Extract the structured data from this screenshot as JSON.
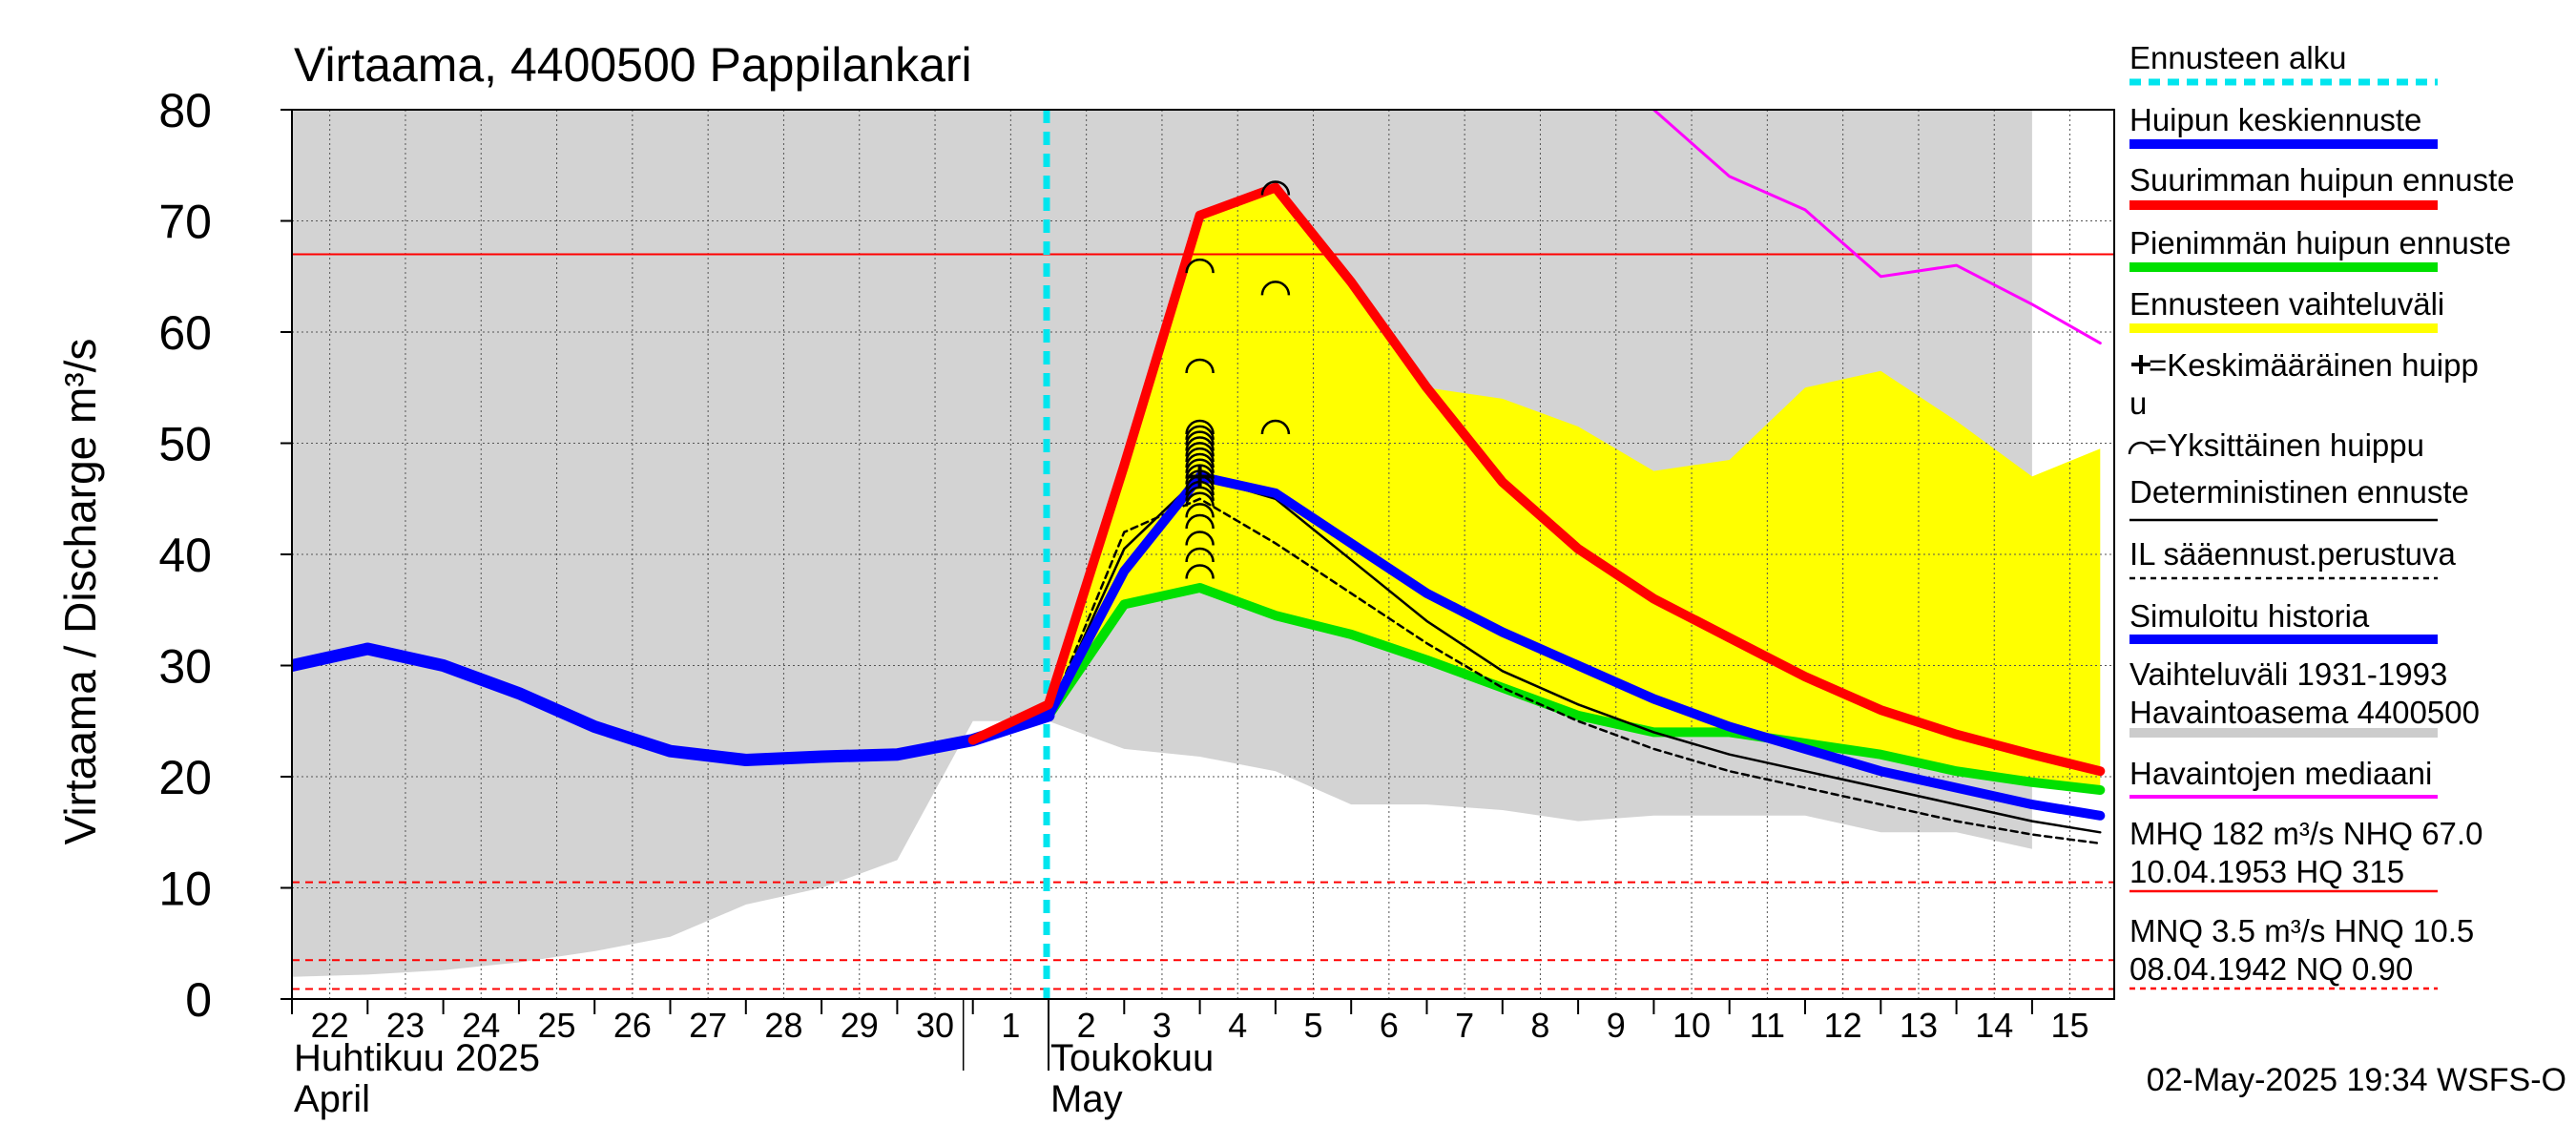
{
  "chart_data": {
    "type": "line",
    "title": "Virtaama, 4400500 Pappilankari",
    "ylabel": "Virtaama / Discharge    m³/s",
    "ylim": [
      0,
      80
    ],
    "y_ticks": [
      0,
      10,
      20,
      30,
      40,
      50,
      60,
      70,
      80
    ],
    "x_start": "2025-04-22",
    "x_end": "2025-05-15",
    "x_tick_labels": [
      {
        "date": "2025-04-22",
        "label": "22"
      },
      {
        "date": "2025-04-23",
        "label": "23"
      },
      {
        "date": "2025-04-24",
        "label": "24"
      },
      {
        "date": "2025-04-25",
        "label": "25"
      },
      {
        "date": "2025-04-26",
        "label": "26"
      },
      {
        "date": "2025-04-27",
        "label": "27"
      },
      {
        "date": "2025-04-28",
        "label": "28"
      },
      {
        "date": "2025-04-29",
        "label": "29"
      },
      {
        "date": "2025-04-30",
        "label": "30"
      },
      {
        "date": "2025-05-01",
        "label": "1"
      },
      {
        "date": "2025-05-02",
        "label": "2"
      },
      {
        "date": "2025-05-03",
        "label": "3"
      },
      {
        "date": "2025-05-04",
        "label": "4"
      },
      {
        "date": "2025-05-05",
        "label": "5"
      },
      {
        "date": "2025-05-06",
        "label": "6"
      },
      {
        "date": "2025-05-07",
        "label": "7"
      },
      {
        "date": "2025-05-08",
        "label": "8"
      },
      {
        "date": "2025-05-09",
        "label": "9"
      },
      {
        "date": "2025-05-10",
        "label": "10"
      },
      {
        "date": "2025-05-11",
        "label": "11"
      },
      {
        "date": "2025-05-12",
        "label": "12"
      },
      {
        "date": "2025-05-13",
        "label": "13"
      },
      {
        "date": "2025-05-14",
        "label": "14"
      },
      {
        "date": "2025-05-15",
        "label": "15"
      }
    ],
    "month_labels": [
      {
        "date": "2025-04-22",
        "fi": "Huhtikuu  2025",
        "en": "April"
      },
      {
        "date": "2025-05-02",
        "fi": "Toukokuu",
        "en": "May"
      }
    ],
    "forecast_start": "2025-05-02",
    "reference_lines": [
      {
        "name": "NHQ",
        "value": 67.0,
        "style": "solid",
        "color": "#ff0000"
      },
      {
        "name": "HNQ",
        "value": 10.5,
        "style": "dashed",
        "color": "#ff0000"
      },
      {
        "name": "MNQ",
        "value": 3.5,
        "style": "dashed",
        "color": "#ff0000"
      },
      {
        "name": "NQ",
        "value": 0.9,
        "style": "dashed",
        "color": "#ff0000"
      }
    ],
    "variation_band_1931_1993": {
      "x": [
        "2025-04-22",
        "2025-04-23",
        "2025-04-24",
        "2025-04-25",
        "2025-04-26",
        "2025-04-27",
        "2025-04-28",
        "2025-04-29",
        "2025-04-30",
        "2025-05-01",
        "2025-05-02",
        "2025-05-03",
        "2025-05-04",
        "2025-05-05",
        "2025-05-06",
        "2025-05-07",
        "2025-05-08",
        "2025-05-09",
        "2025-05-10",
        "2025-05-11",
        "2025-05-12",
        "2025-05-13",
        "2025-05-14",
        "2025-05-15"
      ],
      "upper": [
        80,
        80,
        80,
        80,
        80,
        80,
        80,
        80,
        80,
        80,
        80,
        80,
        80,
        80,
        80,
        80,
        80,
        80,
        80,
        80,
        80,
        80,
        80,
        80
      ],
      "lower": [
        2.0,
        2.2,
        2.6,
        3.3,
        4.3,
        5.6,
        8.5,
        10.0,
        12.5,
        25.0,
        25.0,
        22.5,
        21.8,
        20.5,
        17.5,
        17.5,
        17.0,
        16.0,
        16.5,
        16.5,
        16.5,
        15.0,
        15.0,
        13.5
      ]
    },
    "forecast_band": {
      "x": [
        "2025-05-01",
        "2025-05-02",
        "2025-05-03",
        "2025-05-04",
        "2025-05-05",
        "2025-05-06",
        "2025-05-07",
        "2025-05-08",
        "2025-05-09",
        "2025-05-10",
        "2025-05-11",
        "2025-05-12",
        "2025-05-13",
        "2025-05-14",
        "2025-05-15",
        "2025-05-15.9"
      ],
      "upper": [
        23.5,
        26.5,
        49,
        70.5,
        73,
        64.5,
        55,
        54,
        51.5,
        47.5,
        48.5,
        55,
        56.5,
        52,
        47,
        49.5
      ],
      "lower": [
        23.5,
        25.5,
        35.5,
        37.0,
        34.5,
        32.5,
        30.5,
        28,
        25.5,
        24,
        24,
        23,
        22,
        20.5,
        19.5,
        18.5
      ]
    },
    "series": [
      {
        "name": "Simuloitu historia",
        "color": "#0000ff",
        "x": [
          "2025-04-22",
          "2025-04-23",
          "2025-04-24",
          "2025-04-25",
          "2025-04-26",
          "2025-04-27",
          "2025-04-28",
          "2025-04-29",
          "2025-04-30",
          "2025-05-01",
          "2025-05-02"
        ],
        "y": [
          30.0,
          31.5,
          30.0,
          27.5,
          24.5,
          22.3,
          21.5,
          21.8,
          22.0,
          23.3,
          25.5
        ]
      },
      {
        "name": "Huipun keskiennuste",
        "color": "#0000ff",
        "x": [
          "2025-05-02",
          "2025-05-03",
          "2025-05-04",
          "2025-05-05",
          "2025-05-06",
          "2025-05-07",
          "2025-05-08",
          "2025-05-09",
          "2025-05-10",
          "2025-05-11",
          "2025-05-12",
          "2025-05-13",
          "2025-05-14",
          "2025-05-15",
          "2025-05-15.9"
        ],
        "y": [
          25.5,
          38.5,
          47.0,
          45.5,
          41.0,
          36.5,
          33.0,
          30.0,
          27.0,
          24.5,
          22.5,
          20.5,
          19.0,
          17.5,
          16.5
        ]
      },
      {
        "name": "Suurimman huipun ennuste",
        "color": "#ff0000",
        "x": [
          "2025-05-01",
          "2025-05-02",
          "2025-05-03",
          "2025-05-04",
          "2025-05-05",
          "2025-05-06",
          "2025-05-07",
          "2025-05-08",
          "2025-05-09",
          "2025-05-10",
          "2025-05-11",
          "2025-05-12",
          "2025-05-13",
          "2025-05-14",
          "2025-05-15",
          "2025-05-15.9"
        ],
        "y": [
          23.3,
          26.5,
          48.0,
          70.5,
          73.0,
          64.5,
          55.0,
          46.5,
          40.5,
          36.0,
          32.5,
          29.0,
          26.0,
          23.8,
          22.0,
          20.5
        ]
      },
      {
        "name": "Pienimmän huipun ennuste",
        "color": "#00e000",
        "x": [
          "2025-05-02",
          "2025-05-03",
          "2025-05-04",
          "2025-05-05",
          "2025-05-06",
          "2025-05-07",
          "2025-05-08",
          "2025-05-09",
          "2025-05-10",
          "2025-05-11",
          "2025-05-12",
          "2025-05-13",
          "2025-05-14",
          "2025-05-15",
          "2025-05-15.9"
        ],
        "y": [
          25.5,
          35.5,
          37.0,
          34.5,
          32.8,
          30.5,
          28.0,
          25.5,
          24.0,
          24.0,
          23.0,
          22.0,
          20.5,
          19.5,
          18.8
        ]
      },
      {
        "name": "Deterministinen ennuste",
        "color": "#000000",
        "x": [
          "2025-05-02",
          "2025-05-03",
          "2025-05-04",
          "2025-05-05",
          "2025-05-06",
          "2025-05-07",
          "2025-05-08",
          "2025-05-09",
          "2025-05-10",
          "2025-05-11",
          "2025-05-12",
          "2025-05-13",
          "2025-05-14",
          "2025-05-15",
          "2025-05-15.9"
        ],
        "y": [
          25.5,
          40.5,
          47.0,
          45.0,
          39.5,
          34.0,
          29.5,
          26.5,
          24.0,
          22.0,
          20.5,
          19.0,
          17.5,
          16.0,
          15.0
        ]
      },
      {
        "name": "IL sääennust.perustuva",
        "color": "#000000",
        "dashed": true,
        "x": [
          "2025-05-02",
          "2025-05-03",
          "2025-05-04",
          "2025-05-05",
          "2025-05-06",
          "2025-05-07",
          "2025-05-08",
          "2025-05-09",
          "2025-05-10",
          "2025-05-11",
          "2025-05-12",
          "2025-05-13",
          "2025-05-14",
          "2025-05-15",
          "2025-05-15.9"
        ],
        "y": [
          25.5,
          42.0,
          45.0,
          41.0,
          36.5,
          32.0,
          28.0,
          25.0,
          22.5,
          20.5,
          19.0,
          17.5,
          16.0,
          14.8,
          14.0
        ]
      },
      {
        "name": "Havaintojen mediaani",
        "color": "#ff00ff",
        "x": [
          "2025-05-10",
          "2025-05-11",
          "2025-05-12",
          "2025-05-13",
          "2025-05-14",
          "2025-05-15",
          "2025-05-15.9"
        ],
        "y": [
          80.0,
          74.0,
          71.0,
          65.0,
          66.0,
          62.5,
          59.0
        ]
      }
    ],
    "individual_peaks": {
      "2025-05-04": [
        66,
        57,
        51.5,
        51,
        50.5,
        50,
        49.5,
        49,
        48.5,
        48,
        47.5,
        47,
        46.5,
        46,
        45.5,
        45,
        44,
        43,
        41.5,
        40,
        38.5
      ],
      "2025-05-05": [
        73,
        64,
        51.5
      ]
    },
    "mean_peak": {
      "date": "2025-05-04",
      "value": 47
    },
    "legend": {
      "placement": "right",
      "items": [
        {
          "label": "Ennusteen alku",
          "color": "#00e5ee",
          "style": "dashed-thick"
        },
        {
          "label": "Huipun keskiennuste",
          "color": "#0000ff",
          "style": "thick"
        },
        {
          "label": "Suurimman huipun ennuste",
          "color": "#ff0000",
          "style": "thick"
        },
        {
          "label": "Pienimmän huipun ennuste",
          "color": "#00e000",
          "style": "thick"
        },
        {
          "label": "Ennusteen vaihteluväli",
          "color": "#ffff00",
          "style": "thick"
        },
        {
          "label": "=Keskimääräinen huipp",
          "label2": "u",
          "color": "#000000",
          "style": "plus"
        },
        {
          "label": "=Yksittäinen huippu",
          "color": "#000000",
          "style": "arc"
        },
        {
          "label": "Deterministinen ennuste",
          "color": "#000000",
          "style": "thin"
        },
        {
          "label": "IL sääennust.perustuva",
          "color": "#000000",
          "style": "dashed-thin"
        },
        {
          "label": "Simuloitu historia",
          "color": "#0000ff",
          "style": "thick"
        },
        {
          "label": "Vaihteluväli 1931-1993",
          "label2": " Havaintoasema 4400500",
          "color": "#cccccc",
          "style": "thick"
        },
        {
          "label": "Havaintojen mediaani",
          "color": "#ff00ff",
          "style": "medium"
        },
        {
          "label": "MHQ  182 m³/s NHQ 67.0",
          "label2": "10.04.1953 HQ  315",
          "color": "#ff0000",
          "style": "thin"
        },
        {
          "label": "MNQ  3.5 m³/s HNQ 10.5",
          "label2": "08.04.1942 NQ 0.90",
          "color": "#ff0000",
          "style": "dashed-thin"
        }
      ]
    },
    "footer": "02-May-2025 19:34 WSFS-O"
  }
}
